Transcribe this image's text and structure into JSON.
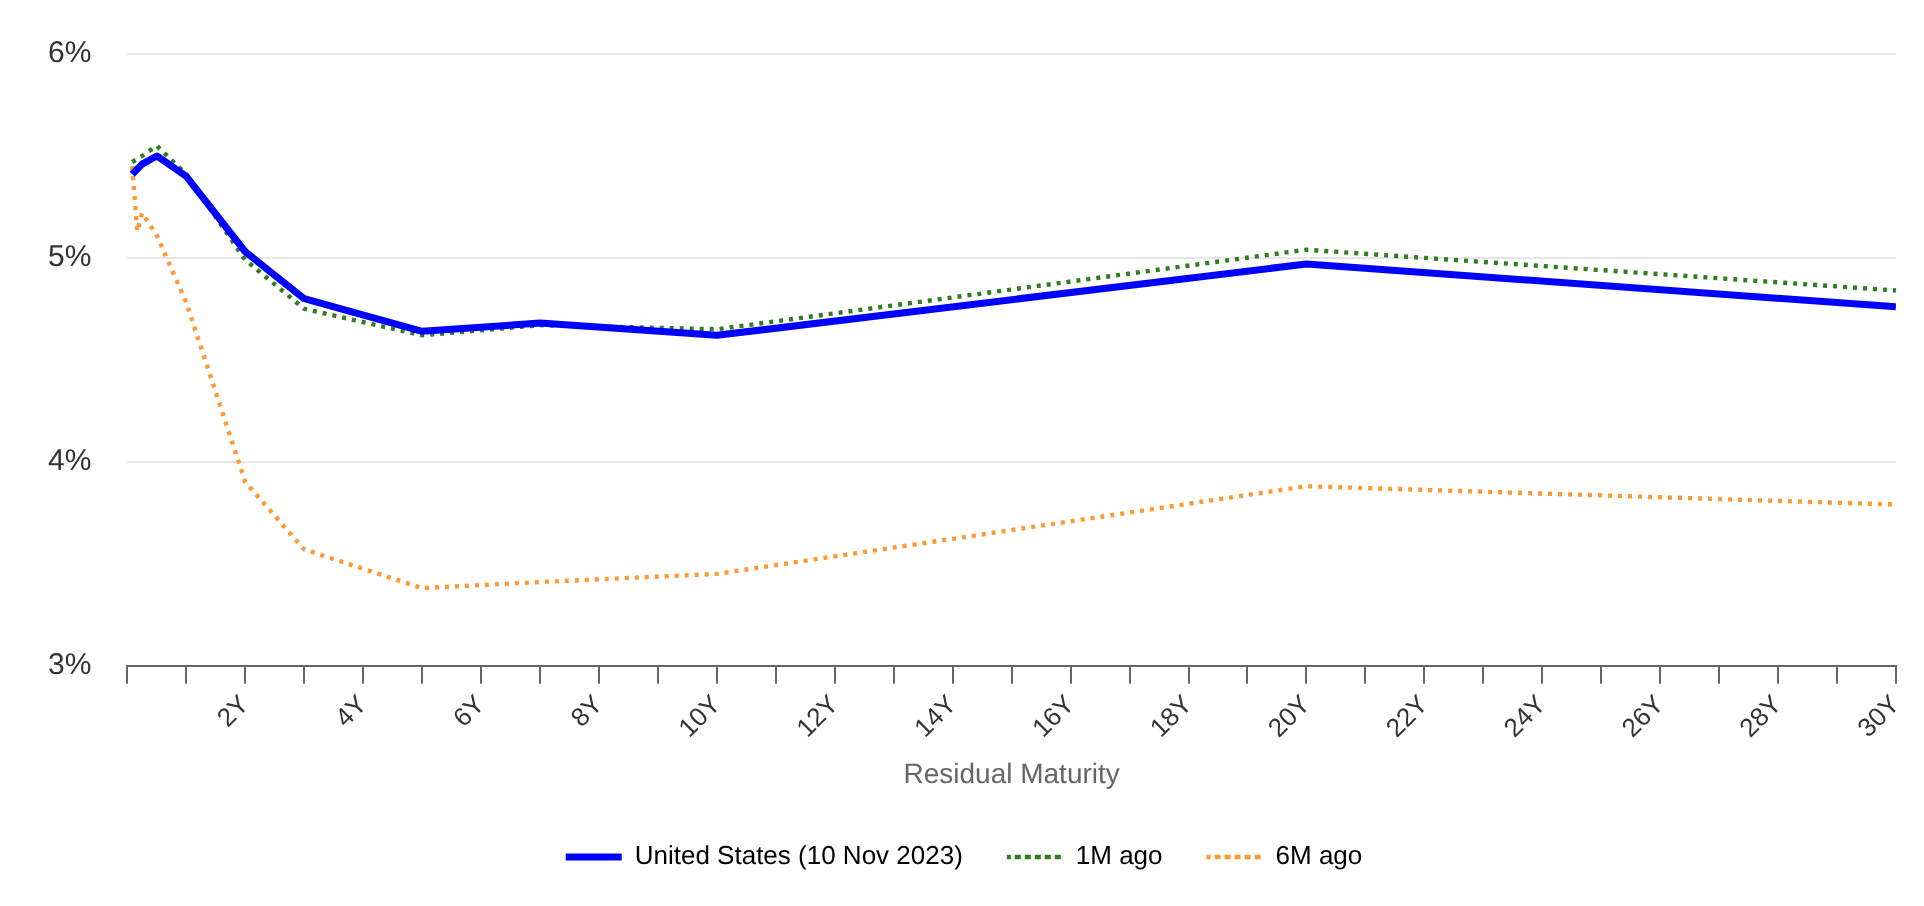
{
  "chart_data": {
    "type": "line",
    "xlabel": "Residual Maturity",
    "xlim": [
      0,
      30
    ],
    "xticks": [
      {
        "value": 0,
        "label": null
      },
      {
        "value": 1,
        "label": null
      },
      {
        "value": 2,
        "label": "2Y"
      },
      {
        "value": 3,
        "label": null
      },
      {
        "value": 4,
        "label": "4Y"
      },
      {
        "value": 5,
        "label": null
      },
      {
        "value": 6,
        "label": "6Y"
      },
      {
        "value": 7,
        "label": null
      },
      {
        "value": 8,
        "label": "8Y"
      },
      {
        "value": 9,
        "label": null
      },
      {
        "value": 10,
        "label": "10Y"
      },
      {
        "value": 11,
        "label": null
      },
      {
        "value": 12,
        "label": "12Y"
      },
      {
        "value": 13,
        "label": null
      },
      {
        "value": 14,
        "label": "14Y"
      },
      {
        "value": 15,
        "label": null
      },
      {
        "value": 16,
        "label": "16Y"
      },
      {
        "value": 17,
        "label": null
      },
      {
        "value": 18,
        "label": "18Y"
      },
      {
        "value": 19,
        "label": null
      },
      {
        "value": 20,
        "label": "20Y"
      },
      {
        "value": 21,
        "label": null
      },
      {
        "value": 22,
        "label": "22Y"
      },
      {
        "value": 23,
        "label": null
      },
      {
        "value": 24,
        "label": "24Y"
      },
      {
        "value": 25,
        "label": null
      },
      {
        "value": 26,
        "label": "26Y"
      },
      {
        "value": 27,
        "label": null
      },
      {
        "value": 28,
        "label": "28Y"
      },
      {
        "value": 29,
        "label": null
      },
      {
        "value": 30,
        "label": "30Y"
      }
    ],
    "ylim": [
      3,
      6
    ],
    "yticks": [
      {
        "value": 3,
        "label": "3%"
      },
      {
        "value": 4,
        "label": "4%"
      },
      {
        "value": 5,
        "label": "5%"
      },
      {
        "value": 6,
        "label": "6%"
      }
    ],
    "grid": "y",
    "legend": "bottom",
    "marker": "none",
    "series": [
      {
        "name": "United States (10 Nov 2023)",
        "color": "#0000ff",
        "line_style": "solid",
        "x": [
          0.083,
          0.25,
          0.5,
          1,
          2,
          3,
          5,
          7,
          10,
          20,
          30
        ],
        "values": [
          5.41,
          5.46,
          5.5,
          5.4,
          5.03,
          4.8,
          4.64,
          4.68,
          4.62,
          4.97,
          4.76
        ]
      },
      {
        "name": "1M ago",
        "color": "#2e7d1e",
        "line_style": "dotted",
        "x": [
          0.083,
          0.25,
          0.5,
          1,
          2,
          3,
          5,
          7,
          10,
          20,
          30
        ],
        "values": [
          5.47,
          5.5,
          5.55,
          5.41,
          4.99,
          4.75,
          4.62,
          4.67,
          4.65,
          5.04,
          4.84
        ]
      },
      {
        "name": "6M ago",
        "color": "#ff9933",
        "line_style": "dotted",
        "x": [
          0.083,
          0.167,
          0.25,
          0.5,
          1,
          2,
          3,
          5,
          7,
          10,
          20,
          30
        ],
        "values": [
          5.45,
          5.13,
          5.22,
          5.11,
          4.78,
          3.9,
          3.57,
          3.38,
          3.41,
          3.45,
          3.88,
          3.79
        ]
      }
    ]
  }
}
